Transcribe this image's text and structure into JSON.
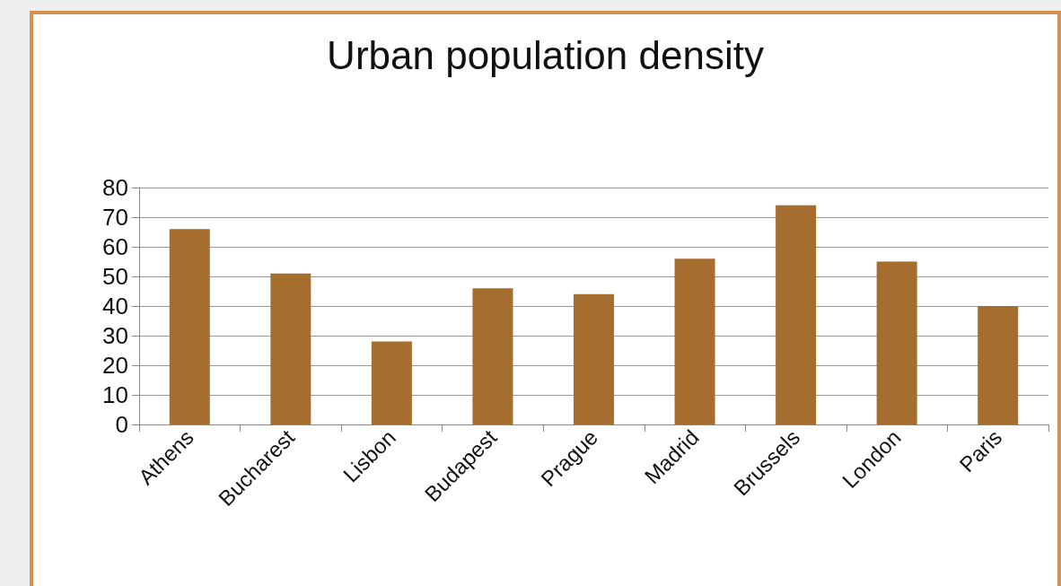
{
  "chart_data": {
    "type": "bar",
    "title": "Urban population density",
    "categories": [
      "Athens",
      "Bucharest",
      "Lisbon",
      "Budapest",
      "Prague",
      "Madrid",
      "Brussels",
      "London",
      "Paris"
    ],
    "values": [
      66,
      51,
      28,
      46,
      44,
      56,
      74,
      55,
      40
    ],
    "color": "#a66e2e",
    "ylim": [
      0,
      80
    ],
    "yticks": [
      0,
      10,
      20,
      30,
      40,
      50,
      60,
      70,
      80
    ],
    "grid": "y"
  }
}
